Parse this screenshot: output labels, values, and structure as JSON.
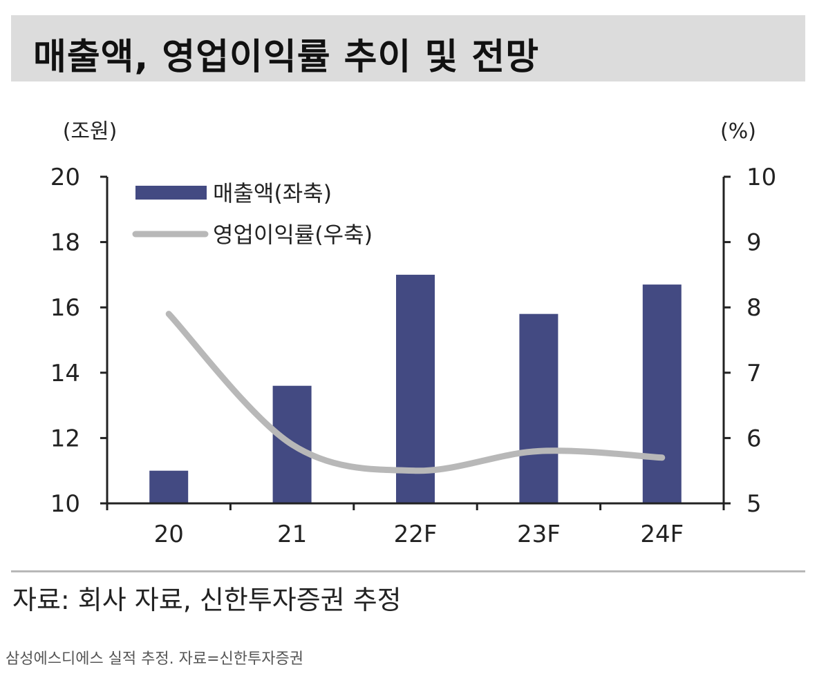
{
  "title": "매출액, 영업이익률 추이 및 전망",
  "source": "자료: 회사 자료, 신한투자증권 추정",
  "caption": "삼성에스디에스 실적 추정. 자료=신한투자증권",
  "colors": {
    "bar": "#434a82",
    "line": "#b8b8b8",
    "axis": "#222222",
    "title_band": "#dcdcdc"
  },
  "chart_data": {
    "type": "bar",
    "categories": [
      "20",
      "21",
      "22F",
      "23F",
      "24F"
    ],
    "y_unit_left": "(조원)",
    "y_unit_right": "(%)",
    "ylim_left": [
      10,
      20
    ],
    "ylim_right": [
      5,
      10
    ],
    "left_ticks": [
      "10",
      "12",
      "14",
      "16",
      "18",
      "20"
    ],
    "right_ticks": [
      "5",
      "6",
      "7",
      "8",
      "9",
      "10"
    ],
    "grid": false,
    "legend_position": "top-left",
    "series": [
      {
        "name": "매출액(좌축)",
        "type": "bar",
        "axis": "left",
        "values": [
          11.0,
          13.6,
          17.0,
          15.8,
          16.7
        ]
      },
      {
        "name": "영업이익률(우축)",
        "type": "line",
        "axis": "right",
        "values": [
          7.9,
          5.9,
          5.5,
          5.8,
          5.7
        ]
      }
    ]
  }
}
